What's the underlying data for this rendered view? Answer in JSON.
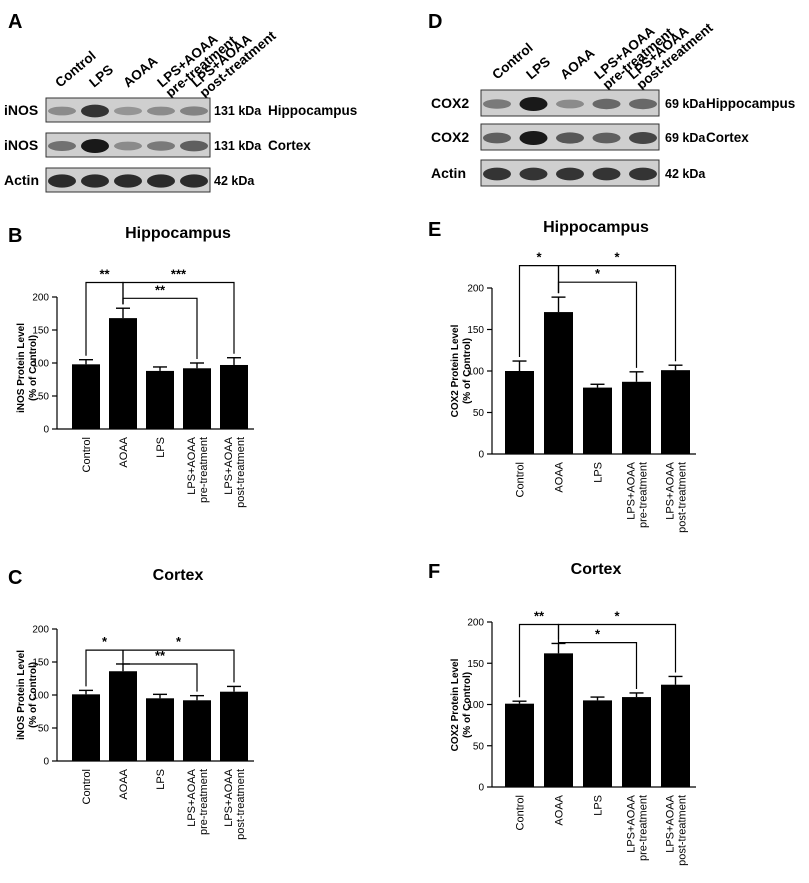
{
  "panels": {
    "A": {
      "letter": "A",
      "lanes": [
        "Control",
        "LPS",
        "AOAA",
        "LPS+AOAA pre-treatment",
        "LPS+AOAA post-treatment"
      ],
      "lane_label_lines": [
        [
          "Control"
        ],
        [
          "LPS"
        ],
        [
          "AOAA"
        ],
        [
          "LPS+AOAA",
          "pre-treatment"
        ],
        [
          "LPS+AOAA",
          "post-treatment"
        ]
      ],
      "blots": [
        {
          "protein": "iNOS",
          "size": "131 kDa",
          "region": "Hippocampus",
          "intensity": [
            0.35,
            0.85,
            0.3,
            0.35,
            0.4
          ]
        },
        {
          "protein": "iNOS",
          "size": "131 kDa",
          "region": "Cortex",
          "intensity": [
            0.5,
            1.0,
            0.35,
            0.45,
            0.6
          ]
        },
        {
          "protein": "Actin",
          "size": "42 kDa",
          "region": "",
          "intensity": [
            0.9,
            0.9,
            0.9,
            0.9,
            0.9
          ]
        }
      ]
    },
    "D": {
      "letter": "D",
      "lanes": [
        "Control",
        "LPS",
        "AOAA",
        "LPS+AOAA pre-treatment",
        "LPS+AOAA post-treatment"
      ],
      "lane_label_lines": [
        [
          "Control"
        ],
        [
          "LPS"
        ],
        [
          "AOAA"
        ],
        [
          "LPS+AOAA",
          "pre-treatment"
        ],
        [
          "LPS+AOAA",
          "post-treatment"
        ]
      ],
      "blots": [
        {
          "protein": "COX2",
          "size": "69 kDa",
          "region": "Hippocampus",
          "intensity": [
            0.45,
            1.0,
            0.35,
            0.55,
            0.55
          ]
        },
        {
          "protein": "COX2",
          "size": "69 kDa",
          "region": "Cortex",
          "intensity": [
            0.6,
            1.0,
            0.65,
            0.6,
            0.75
          ]
        },
        {
          "protein": "Actin",
          "size": "42 kDa",
          "region": "",
          "intensity": [
            0.85,
            0.85,
            0.85,
            0.85,
            0.85
          ]
        }
      ]
    }
  },
  "chart_data": [
    {
      "letter": "B",
      "type": "bar",
      "title": "Hippocampus",
      "ylabel_lines": [
        "iNOS Protein Level",
        "(% of Control)"
      ],
      "categories": [
        "Control",
        "AOAA",
        "LPS",
        "LPS+AOAA pre-treatment",
        "LPS+AOAA post-treatment"
      ],
      "category_label_lines": [
        [
          "Control"
        ],
        [
          "AOAA"
        ],
        [
          "LPS"
        ],
        [
          "LPS+AOAA",
          "pre-treatment"
        ],
        [
          "LPS+AOAA",
          "post-treatment"
        ]
      ],
      "values": [
        98,
        168,
        88,
        92,
        97
      ],
      "errors": [
        7,
        15,
        6,
        8,
        11
      ],
      "ylim": [
        0,
        200
      ],
      "yticks": [
        0,
        50,
        100,
        150,
        200
      ],
      "significance": [
        {
          "from": 0,
          "to": 1,
          "label": "**",
          "level": 222
        },
        {
          "from": 1,
          "to": 4,
          "label": "***",
          "level": 222
        },
        {
          "from": 1,
          "to": 3,
          "label": "**",
          "level": 198
        }
      ]
    },
    {
      "letter": "C",
      "type": "bar",
      "title": "Cortex",
      "ylabel_lines": [
        "iNOS Protein Level",
        "(% of Control)"
      ],
      "categories": [
        "Control",
        "AOAA",
        "LPS",
        "LPS+AOAA pre-treatment",
        "LPS+AOAA post-treatment"
      ],
      "category_label_lines": [
        [
          "Control"
        ],
        [
          "AOAA"
        ],
        [
          "LPS"
        ],
        [
          "LPS+AOAA",
          "pre-treatment"
        ],
        [
          "LPS+AOAA",
          "post-treatment"
        ]
      ],
      "values": [
        101,
        136,
        95,
        92,
        105
      ],
      "errors": [
        6,
        11,
        6,
        7,
        8
      ],
      "ylim": [
        0,
        200
      ],
      "yticks": [
        0,
        50,
        100,
        150,
        200
      ],
      "significance": [
        {
          "from": 0,
          "to": 1,
          "label": "*",
          "level": 168
        },
        {
          "from": 1,
          "to": 4,
          "label": "*",
          "level": 168
        },
        {
          "from": 1,
          "to": 3,
          "label": "**",
          "level": 147
        }
      ]
    },
    {
      "letter": "E",
      "type": "bar",
      "title": "Hippocampus",
      "ylabel_lines": [
        "COX2 Protein Level",
        "(% of Control)"
      ],
      "categories": [
        "Control",
        "AOAA",
        "LPS",
        "LPS+AOAA pre-treatment",
        "LPS+AOAA post-treatment"
      ],
      "category_label_lines": [
        [
          "Control"
        ],
        [
          "AOAA"
        ],
        [
          "LPS"
        ],
        [
          "LPS+AOAA",
          "pre-treatment"
        ],
        [
          "LPS+AOAA",
          "post-treatment"
        ]
      ],
      "values": [
        100,
        171,
        80,
        87,
        101
      ],
      "errors": [
        12,
        18,
        4,
        12,
        6
      ],
      "ylim": [
        0,
        200
      ],
      "yticks": [
        0,
        50,
        100,
        150,
        200
      ],
      "significance": [
        {
          "from": 0,
          "to": 1,
          "label": "*",
          "level": 227
        },
        {
          "from": 1,
          "to": 4,
          "label": "*",
          "level": 227
        },
        {
          "from": 1,
          "to": 3,
          "label": "*",
          "level": 207
        }
      ]
    },
    {
      "letter": "F",
      "type": "bar",
      "title": "Cortex",
      "ylabel_lines": [
        "COX2 Protein Level",
        "(% of Control)"
      ],
      "categories": [
        "Control",
        "AOAA",
        "LPS",
        "LPS+AOAA pre-treatment",
        "LPS+AOAA post-treatment"
      ],
      "category_label_lines": [
        [
          "Control"
        ],
        [
          "AOAA"
        ],
        [
          "LPS"
        ],
        [
          "LPS+AOAA",
          "pre-treatment"
        ],
        [
          "LPS+AOAA",
          "post-treatment"
        ]
      ],
      "values": [
        101,
        162,
        105,
        109,
        124
      ],
      "errors": [
        3,
        12,
        4,
        5,
        10
      ],
      "ylim": [
        0,
        200
      ],
      "yticks": [
        0,
        50,
        100,
        150,
        200
      ],
      "significance": [
        {
          "from": 0,
          "to": 1,
          "label": "**",
          "level": 197
        },
        {
          "from": 1,
          "to": 4,
          "label": "*",
          "level": 197
        },
        {
          "from": 1,
          "to": 3,
          "label": "*",
          "level": 175
        }
      ]
    }
  ]
}
